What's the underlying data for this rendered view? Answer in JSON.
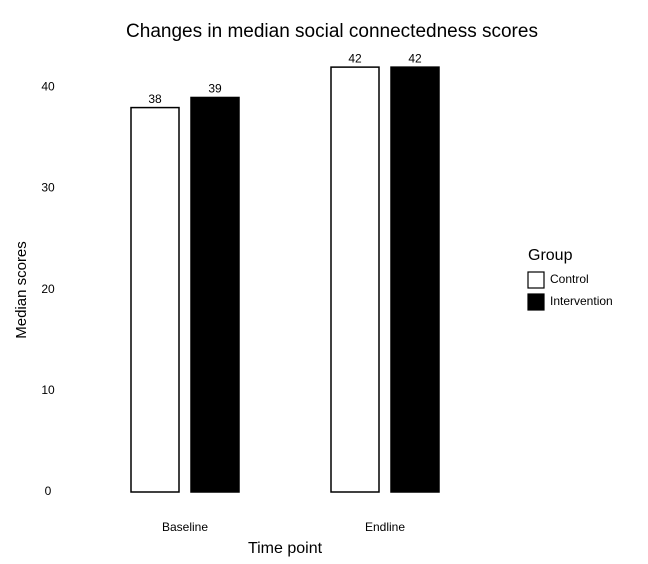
{
  "chart_data": {
    "type": "bar",
    "title": "Changes in median social connectedness scores",
    "x_label": "Time point",
    "y_label": "Median scores",
    "categories": [
      "Baseline",
      "Endline"
    ],
    "series": [
      {
        "name": "Control",
        "color": "#ffffff",
        "values": [
          38,
          42
        ]
      },
      {
        "name": "Intervention",
        "color": "#000000",
        "values": [
          39,
          42
        ]
      }
    ],
    "legend_title": "Group",
    "legend": "right",
    "ylim": [
      0,
      43
    ],
    "yticks": [
      0,
      10,
      20,
      30,
      40
    ],
    "grid": false
  }
}
